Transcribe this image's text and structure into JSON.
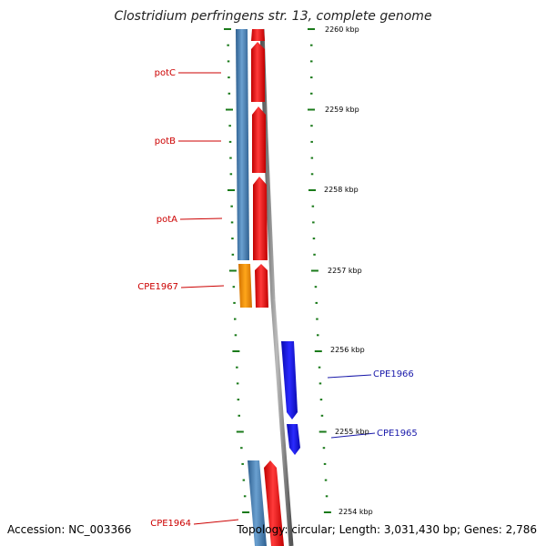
{
  "title": "Clostridium perfringens str. 13, complete genome",
  "accession": "Accession: NC_003366",
  "topology": "Topology: circular; Length: 3,031,430 bp; Genes: 2,786",
  "colors": {
    "tick": "#1a7a1a",
    "backbone": "#7a7a7a",
    "strand_blue": "#4a80b6",
    "strand_red": "#ff1a1a",
    "gene_red": "#ff1a1a",
    "gene_orange": "#ff9a00",
    "gene_blue": "#1a1aff",
    "label_red": "#cc0000",
    "label_blue": "#1a1aaa"
  },
  "scale_labels": [
    {
      "text": "2260 kbp"
    },
    {
      "text": "2259 kbp"
    },
    {
      "text": "2258 kbp"
    },
    {
      "text": "2257 kbp"
    },
    {
      "text": "2256 kbp"
    },
    {
      "text": "2255 kbp"
    },
    {
      "text": "2254 kbp"
    }
  ],
  "gene_labels": [
    {
      "text": "potC",
      "strand": "minus"
    },
    {
      "text": "potB",
      "strand": "minus"
    },
    {
      "text": "potA",
      "strand": "minus"
    },
    {
      "text": "CPE1967",
      "strand": "minus"
    },
    {
      "text": "CPE1964",
      "strand": "minus"
    },
    {
      "text": "CPE1966",
      "strand": "plus"
    },
    {
      "text": "CPE1965",
      "strand": "plus"
    }
  ]
}
